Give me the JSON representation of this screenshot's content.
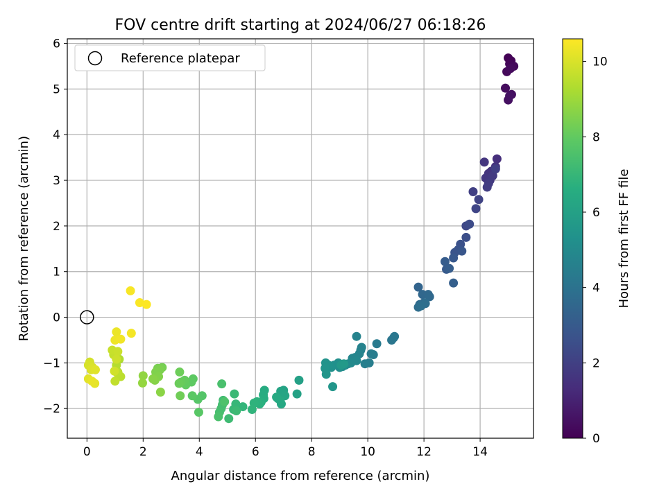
{
  "chart_data": {
    "type": "scatter",
    "title": "FOV centre drift starting at 2024/06/27 06:18:26",
    "xlabel": "Angular distance from reference (arcmin)",
    "ylabel": "Rotation from reference (arcmin)",
    "xlim": [
      -0.7,
      15.9
    ],
    "ylim": [
      -2.65,
      6.1
    ],
    "x_ticks": [
      0,
      2,
      4,
      6,
      8,
      10,
      12,
      14
    ],
    "y_ticks": [
      -2,
      -1,
      0,
      1,
      2,
      3,
      4,
      5,
      6
    ],
    "x_tick_labels": [
      "0",
      "2",
      "4",
      "6",
      "8",
      "10",
      "12",
      "14"
    ],
    "y_tick_labels": [
      "−2",
      "−1",
      "0",
      "1",
      "2",
      "3",
      "4",
      "5",
      "6"
    ],
    "grid": true,
    "legend": {
      "position": "top-left",
      "entries": [
        "Reference platepar"
      ]
    },
    "reference_point": {
      "x": 0,
      "y": 0,
      "label": "Reference platepar"
    },
    "colorbar": {
      "label": "Hours from first FF file",
      "range": [
        0,
        10.6
      ],
      "ticks": [
        0,
        2,
        4,
        6,
        8,
        10
      ],
      "tick_labels": [
        "0",
        "2",
        "4",
        "6",
        "8",
        "10"
      ],
      "colormap": "viridis"
    },
    "columns": [
      "x",
      "y",
      "hours"
    ],
    "points": [
      [
        15.0,
        5.68,
        0.05
      ],
      [
        15.1,
        5.62,
        0.1
      ],
      [
        15.05,
        5.55,
        0.15
      ],
      [
        15.2,
        5.5,
        0.2
      ],
      [
        14.95,
        5.38,
        0.25
      ],
      [
        15.08,
        5.45,
        0.3
      ],
      [
        14.9,
        5.02,
        0.35
      ],
      [
        15.12,
        4.88,
        0.4
      ],
      [
        15.0,
        4.76,
        0.45
      ],
      [
        15.05,
        4.85,
        0.5
      ],
      [
        14.6,
        3.47,
        1.4
      ],
      [
        14.55,
        3.3,
        1.5
      ],
      [
        14.4,
        3.2,
        1.55
      ],
      [
        14.3,
        3.15,
        1.6
      ],
      [
        14.15,
        3.4,
        1.65
      ],
      [
        14.2,
        3.05,
        1.7
      ],
      [
        14.35,
        3.0,
        1.75
      ],
      [
        14.45,
        3.1,
        1.8
      ],
      [
        14.3,
        2.93,
        1.85
      ],
      [
        14.25,
        2.85,
        1.9
      ],
      [
        14.55,
        3.25,
        1.95
      ],
      [
        13.75,
        2.75,
        2.0
      ],
      [
        13.95,
        2.58,
        2.1
      ],
      [
        13.85,
        2.38,
        2.2
      ],
      [
        13.5,
        2.0,
        2.3
      ],
      [
        13.62,
        2.04,
        2.4
      ],
      [
        13.5,
        1.75,
        2.5
      ],
      [
        13.3,
        1.6,
        2.6
      ],
      [
        13.22,
        1.48,
        2.7
      ],
      [
        13.1,
        1.42,
        2.75
      ],
      [
        13.35,
        1.45,
        2.8
      ],
      [
        13.05,
        1.3,
        2.9
      ],
      [
        12.8,
        1.05,
        3.0
      ],
      [
        12.75,
        1.22,
        3.05
      ],
      [
        12.9,
        1.07,
        3.1
      ],
      [
        13.05,
        0.75,
        3.2
      ],
      [
        11.8,
        0.66,
        3.4
      ],
      [
        11.95,
        0.5,
        3.5
      ],
      [
        12.15,
        0.5,
        3.55
      ],
      [
        12.2,
        0.45,
        3.6
      ],
      [
        12.0,
        0.32,
        3.65
      ],
      [
        11.85,
        0.28,
        3.7
      ],
      [
        11.8,
        0.22,
        3.75
      ],
      [
        12.05,
        0.3,
        3.8
      ],
      [
        11.9,
        0.25,
        3.85
      ],
      [
        10.92,
        -0.45,
        4.1
      ],
      [
        10.85,
        -0.5,
        4.15
      ],
      [
        10.95,
        -0.42,
        4.2
      ],
      [
        10.32,
        -0.58,
        4.3
      ],
      [
        10.2,
        -0.82,
        4.4
      ],
      [
        10.12,
        -0.8,
        4.45
      ],
      [
        10.05,
        -1.0,
        4.5
      ],
      [
        9.9,
        -1.02,
        4.55
      ],
      [
        9.75,
        -0.72,
        4.6
      ],
      [
        9.78,
        -0.66,
        4.65
      ],
      [
        9.6,
        -0.42,
        4.7
      ],
      [
        9.7,
        -0.8,
        4.75
      ],
      [
        9.55,
        -0.88,
        4.8
      ],
      [
        9.45,
        -0.9,
        4.85
      ],
      [
        9.6,
        -0.95,
        4.9
      ],
      [
        9.4,
        -1.0,
        4.95
      ],
      [
        9.3,
        -1.02,
        5.0
      ],
      [
        9.2,
        -1.05,
        5.05
      ],
      [
        9.1,
        -1.08,
        5.1
      ],
      [
        9.0,
        -1.1,
        5.15
      ],
      [
        8.95,
        -1.0,
        5.2
      ],
      [
        8.8,
        -1.05,
        5.25
      ],
      [
        8.7,
        -1.1,
        5.3
      ],
      [
        8.6,
        -1.05,
        5.35
      ],
      [
        8.5,
        -1.0,
        5.4
      ],
      [
        8.48,
        -1.12,
        5.45
      ],
      [
        8.52,
        -1.25,
        5.5
      ],
      [
        8.75,
        -1.52,
        5.55
      ],
      [
        9.05,
        -1.05,
        5.6
      ],
      [
        9.15,
        -1.02,
        5.65
      ],
      [
        7.55,
        -1.38,
        6.0
      ],
      [
        7.48,
        -1.68,
        6.05
      ],
      [
        7.0,
        -1.6,
        6.1
      ],
      [
        6.9,
        -1.62,
        6.15
      ],
      [
        7.05,
        -1.72,
        6.2
      ],
      [
        6.8,
        -1.78,
        6.25
      ],
      [
        6.92,
        -1.9,
        6.3
      ],
      [
        6.88,
        -1.82,
        6.35
      ],
      [
        6.75,
        -1.75,
        6.4
      ],
      [
        6.32,
        -1.6,
        6.5
      ],
      [
        6.28,
        -1.7,
        6.55
      ],
      [
        6.3,
        -1.78,
        6.6
      ],
      [
        6.2,
        -1.86,
        6.65
      ],
      [
        6.15,
        -1.9,
        6.7
      ],
      [
        6.05,
        -1.85,
        6.75
      ],
      [
        5.95,
        -1.88,
        6.8
      ],
      [
        5.88,
        -2.02,
        6.85
      ],
      [
        5.55,
        -1.96,
        6.9
      ],
      [
        5.3,
        -1.9,
        7.0
      ],
      [
        5.22,
        -2.02,
        7.05
      ],
      [
        5.25,
        -1.68,
        7.1
      ],
      [
        5.32,
        -2.05,
        7.15
      ],
      [
        5.05,
        -2.22,
        7.2
      ],
      [
        4.85,
        -1.82,
        7.25
      ],
      [
        4.82,
        -1.92,
        7.3
      ],
      [
        4.78,
        -2.0,
        7.35
      ],
      [
        4.72,
        -2.08,
        7.4
      ],
      [
        4.8,
        -1.46,
        7.45
      ],
      [
        4.68,
        -2.18,
        7.5
      ],
      [
        4.9,
        -1.85,
        7.55
      ],
      [
        4.1,
        -1.72,
        7.7
      ],
      [
        3.95,
        -1.8,
        7.75
      ],
      [
        3.98,
        -2.08,
        7.8
      ],
      [
        3.75,
        -1.72,
        7.85
      ],
      [
        3.78,
        -1.35,
        7.9
      ],
      [
        3.72,
        -1.42,
        7.95
      ],
      [
        3.52,
        -1.48,
        8.0
      ],
      [
        3.48,
        -1.38,
        8.05
      ],
      [
        3.35,
        -1.42,
        8.1
      ],
      [
        3.28,
        -1.45,
        8.15
      ],
      [
        3.3,
        -1.2,
        8.2
      ],
      [
        3.32,
        -1.72,
        8.25
      ],
      [
        2.68,
        -1.1,
        8.35
      ],
      [
        2.52,
        -1.12,
        8.4
      ],
      [
        2.6,
        -1.15,
        8.45
      ],
      [
        2.45,
        -1.2,
        8.5
      ],
      [
        2.55,
        -1.3,
        8.55
      ],
      [
        2.42,
        -1.38,
        8.6
      ],
      [
        2.35,
        -1.35,
        8.65
      ],
      [
        2.62,
        -1.64,
        8.7
      ],
      [
        2.0,
        -1.28,
        8.8
      ],
      [
        1.98,
        -1.44,
        8.85
      ],
      [
        1.15,
        -0.92,
        9.3
      ],
      [
        1.08,
        -0.88,
        9.35
      ],
      [
        1.05,
        -1.05,
        9.4
      ],
      [
        1.1,
        -1.2,
        9.45
      ],
      [
        1.2,
        -1.3,
        9.5
      ],
      [
        1.08,
        -1.22,
        9.55
      ],
      [
        1.0,
        -1.4,
        9.6
      ],
      [
        0.95,
        -0.82,
        9.65
      ],
      [
        0.9,
        -0.72,
        9.7
      ],
      [
        1.1,
        -0.75,
        9.75
      ],
      [
        1.05,
        -0.92,
        9.8
      ],
      [
        0.98,
        -1.18,
        9.85
      ],
      [
        0.1,
        -0.98,
        9.9
      ],
      [
        0.05,
        -1.05,
        9.95
      ],
      [
        0.2,
        -1.1,
        10.0
      ],
      [
        0.15,
        -1.15,
        10.05
      ],
      [
        0.3,
        -1.15,
        10.1
      ],
      [
        0.05,
        -1.35,
        10.15
      ],
      [
        0.28,
        -1.45,
        10.2
      ],
      [
        0.18,
        -1.4,
        10.25
      ],
      [
        1.05,
        -0.32,
        10.3
      ],
      [
        1.0,
        -0.5,
        10.35
      ],
      [
        1.2,
        -0.48,
        10.4
      ],
      [
        1.58,
        -0.35,
        10.45
      ],
      [
        1.55,
        0.58,
        10.5
      ],
      [
        1.88,
        0.32,
        10.55
      ],
      [
        2.12,
        0.28,
        10.58
      ]
    ]
  }
}
